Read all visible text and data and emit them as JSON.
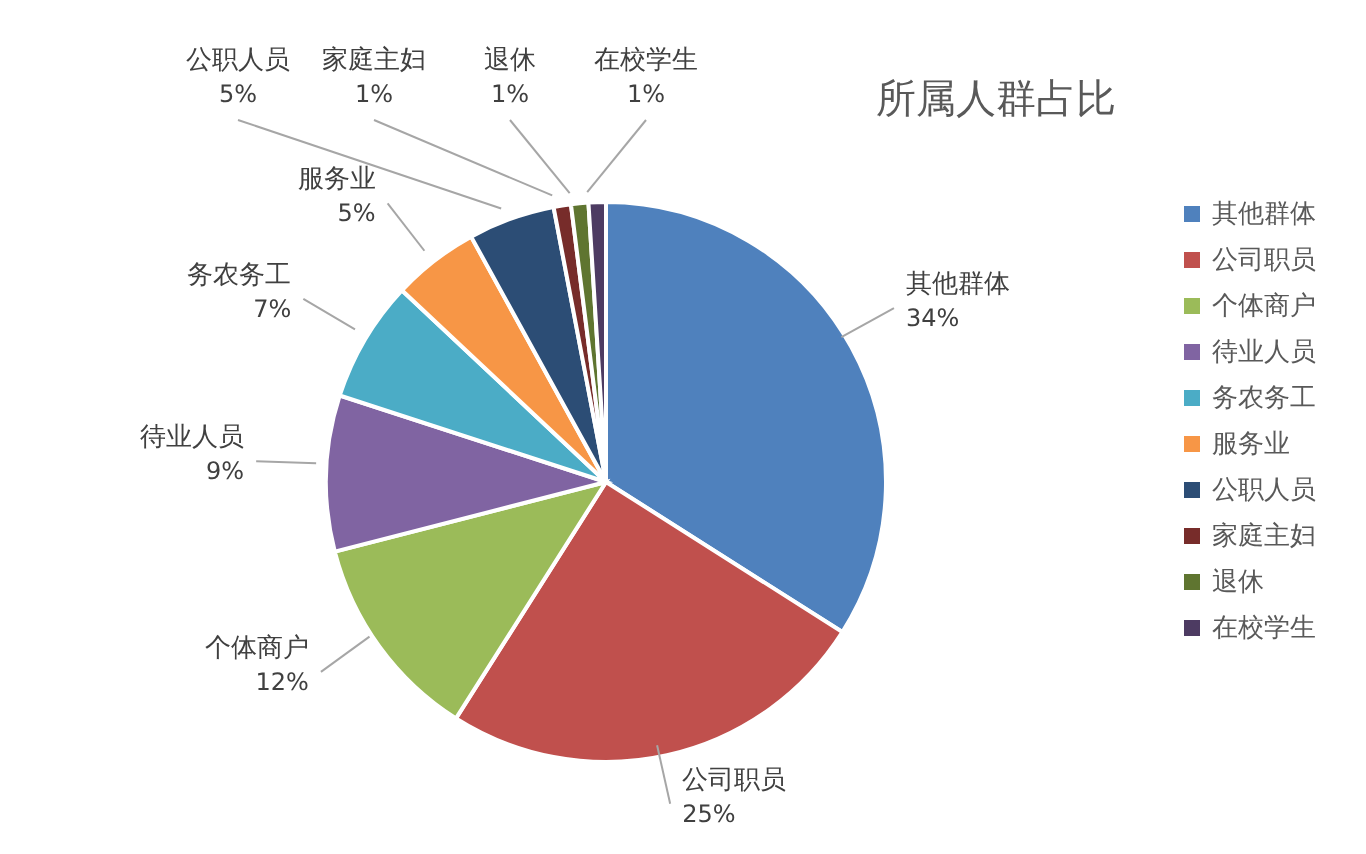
{
  "chart_data": {
    "type": "pie",
    "title": "所属人群占比",
    "categories": [
      "其他群体",
      "公司职员",
      "个体商户",
      "待业人员",
      "务农务工",
      "服务业",
      "公职人员",
      "家庭主妇",
      "退休",
      "在校学生"
    ],
    "values": [
      34,
      25,
      12,
      9,
      7,
      5,
      5,
      1,
      1,
      1
    ],
    "value_labels": [
      "34%",
      "25%",
      "12%",
      "9%",
      "7%",
      "5%",
      "5%",
      "1%",
      "1%",
      "1%"
    ],
    "colors": [
      "#4f81bd",
      "#c0504d",
      "#9bbb59",
      "#8064a2",
      "#4bacc6",
      "#f79646",
      "#2c4d75",
      "#772c2a",
      "#5f7530",
      "#4d3b62"
    ],
    "legend": "right"
  }
}
